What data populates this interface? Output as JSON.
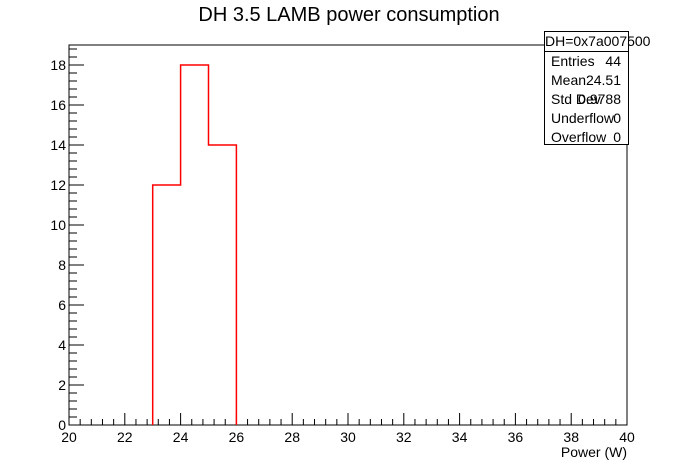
{
  "chart_data": {
    "type": "histogram",
    "title": "DH 3.5 LAMB power consumption",
    "xlabel": "Power (W)",
    "ylabel": "",
    "xlim": [
      20,
      40
    ],
    "ylim": [
      0,
      19
    ],
    "x_major_ticks": [
      20,
      22,
      24,
      26,
      28,
      30,
      32,
      34,
      36,
      38,
      40
    ],
    "y_major_ticks": [
      0,
      2,
      4,
      6,
      8,
      10,
      12,
      14,
      16,
      18
    ],
    "bin_width": 1,
    "bins": [
      {
        "low": 23,
        "high": 24,
        "count": 12
      },
      {
        "low": 24,
        "high": 25,
        "count": 18
      },
      {
        "low": 25,
        "high": 26,
        "count": 14
      }
    ],
    "line_color": "#ff0000",
    "grid": false,
    "stats_box": {
      "name": "DH=0x7a007500",
      "rows": [
        {
          "label": "Entries",
          "value": "44"
        },
        {
          "label": "Mean",
          "value": "24.51"
        },
        {
          "label": "Std Dev",
          "value": "0.9788"
        },
        {
          "label": "Underflow",
          "value": "0"
        },
        {
          "label": "Overflow",
          "value": "0"
        }
      ]
    }
  }
}
